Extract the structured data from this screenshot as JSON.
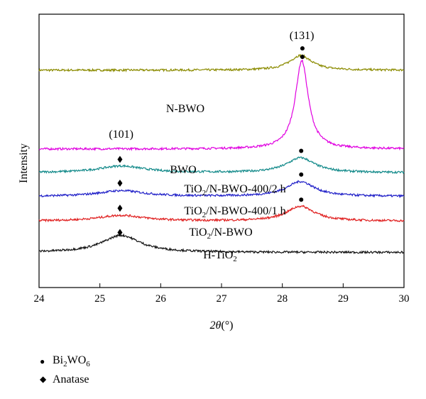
{
  "chart_data": {
    "type": "line",
    "xlabel_symbol": "2θ",
    "xlabel_unit": "(°)",
    "ylabel": "Intensity",
    "xlim": [
      24,
      30
    ],
    "xticks": [
      24,
      25,
      26,
      27,
      28,
      29,
      30
    ],
    "yticks_shown": false,
    "grid": false,
    "series": [
      {
        "name": "N-BWO",
        "label_parts": [
          "N-BWO"
        ],
        "color": "#8b8b00",
        "baseline": 8.25,
        "peaks": [
          {
            "center": 28.3,
            "height": 0.78,
            "width": 0.22
          }
        ],
        "markers": [
          {
            "type": "bi2wo6",
            "x": 28.33,
            "y": 9.4
          }
        ]
      },
      {
        "name": "BWO",
        "label_parts": [
          "BWO"
        ],
        "color": "#e000e0",
        "baseline": 4.1,
        "peaks": [
          {
            "center": 28.32,
            "height": 4.65,
            "width": 0.13
          }
        ],
        "markers": [
          {
            "type": "bi2wo6",
            "x": 28.33,
            "y": 8.95
          }
        ]
      },
      {
        "name": "TiO2/N-BWO-400/2 h",
        "label_parts": [
          "TiO",
          "2",
          "/N-BWO-400/2 h"
        ],
        "color": "#138a8a",
        "baseline": 2.85,
        "peaks": [
          {
            "center": 25.35,
            "height": 0.35,
            "width": 0.45
          },
          {
            "center": 28.3,
            "height": 0.78,
            "width": 0.28
          }
        ],
        "markers": [
          {
            "type": "anatase",
            "x": 25.33,
            "y": 3.55
          },
          {
            "type": "bi2wo6",
            "x": 28.31,
            "y": 4.0
          }
        ]
      },
      {
        "name": "TiO2/N-BWO-400/1 h",
        "label_parts": [
          "TiO",
          "2",
          "/N-BWO-400/1 h"
        ],
        "color": "#2020c8",
        "baseline": 1.6,
        "peaks": [
          {
            "center": 25.35,
            "height": 0.3,
            "width": 0.45
          },
          {
            "center": 28.3,
            "height": 0.78,
            "width": 0.28
          }
        ],
        "markers": [
          {
            "type": "anatase",
            "x": 25.33,
            "y": 2.3
          },
          {
            "type": "bi2wo6",
            "x": 28.31,
            "y": 2.75
          }
        ]
      },
      {
        "name": "TiO2/N-BWO",
        "label_parts": [
          "TiO",
          "2",
          "/N-BWO"
        ],
        "color": "#e02020",
        "baseline": 0.3,
        "peaks": [
          {
            "center": 25.35,
            "height": 0.3,
            "width": 0.45
          },
          {
            "center": 28.3,
            "height": 0.78,
            "width": 0.28
          }
        ],
        "markers": [
          {
            "type": "anatase",
            "x": 25.33,
            "y": 0.98
          },
          {
            "type": "bi2wo6",
            "x": 28.31,
            "y": 1.43
          }
        ]
      },
      {
        "name": "H-TiO2",
        "label_parts": [
          "H-TiO",
          "2",
          ""
        ],
        "color": "#111111",
        "baseline": -1.35,
        "peaks": [
          {
            "center": 25.35,
            "height": 0.9,
            "width": 0.38
          }
        ],
        "markers": [
          {
            "type": "anatase",
            "x": 25.33,
            "y": -0.3
          }
        ]
      }
    ],
    "annotations": [
      {
        "text": "(131)",
        "x": 28.32,
        "y": 9.9
      },
      {
        "text": "(101)",
        "x": 25.35,
        "y": 4.7
      }
    ],
    "legend": {
      "placement": "bottom-left",
      "entries": [
        {
          "marker": "●",
          "text_parts": [
            "Bi",
            "2",
            "WO",
            "6",
            ""
          ]
        },
        {
          "marker": "◆",
          "text_parts": [
            "Anatase"
          ]
        }
      ]
    }
  }
}
